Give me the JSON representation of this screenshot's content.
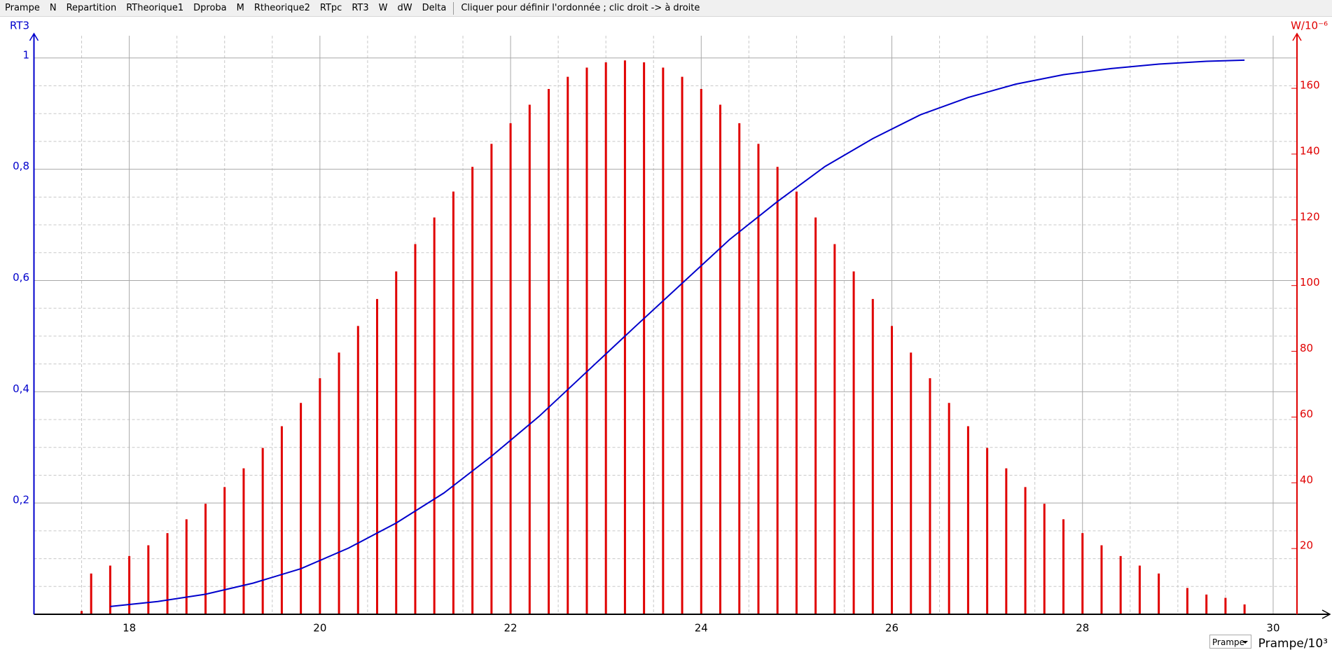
{
  "toolbar": {
    "buttons": [
      "Prampe",
      "N",
      "Repartition",
      "RTheorique1",
      "Dproba",
      "M",
      "Rtheorique2",
      "RTpc",
      "RT3",
      "W",
      "dW",
      "Delta"
    ],
    "hint": "Cliquer pour définir l'ordonnée ; clic droit -> à droite"
  },
  "dropdown": "Prampe",
  "chart_data": {
    "type": "bar",
    "y_label": "RT3",
    "y2_label": "W/10⁻⁶",
    "x_label": "Prampe/10³",
    "xlim": [
      17,
      30.25
    ],
    "xticks": [
      18,
      20,
      22,
      24,
      26,
      28,
      30
    ],
    "ylim": [
      0,
      1.04
    ],
    "yticks": [
      {
        "value": 0.2,
        "label": "0,2"
      },
      {
        "value": 0.4,
        "label": "0,4"
      },
      {
        "value": 0.6,
        "label": "0,6"
      },
      {
        "value": 0.8,
        "label": "0,8"
      },
      1
    ],
    "y2lim": [
      0,
      176
    ],
    "y2ticks": [
      20,
      40,
      60,
      80,
      100,
      120,
      140,
      160
    ],
    "grid": true,
    "series": [
      {
        "name": "W",
        "axis": "y2",
        "type": "bar",
        "color": "#e00000",
        "x": [
          17.5,
          17.6,
          17.8,
          18.0,
          18.2,
          18.4,
          18.6,
          18.8,
          19.0,
          19.2,
          19.4,
          19.6,
          19.8,
          20.0,
          20.2,
          20.4,
          20.6,
          20.8,
          21.0,
          21.2,
          21.4,
          21.6,
          21.8,
          22.0,
          22.2,
          22.4,
          22.6,
          22.8,
          23.0,
          23.2,
          23.4,
          23.6,
          23.8,
          24.0,
          24.2,
          24.4,
          24.6,
          24.8,
          25.0,
          25.2,
          25.4,
          25.6,
          25.8,
          26.0,
          26.2,
          26.4,
          26.6,
          26.8,
          27.0,
          27.2,
          27.4,
          27.6,
          27.8,
          28.0,
          28.2,
          28.4,
          28.6,
          28.8,
          29.1,
          29.3,
          29.5,
          29.7
        ],
        "values": [
          1,
          12.4,
          14.8,
          17.7,
          21.0,
          24.7,
          28.9,
          33.6,
          38.7,
          44.4,
          50.6,
          57.2,
          64.3,
          71.8,
          79.6,
          87.7,
          95.9,
          104.3,
          112.6,
          120.7,
          128.6,
          136.1,
          143.1,
          149.4,
          155.0,
          159.8,
          163.5,
          166.3,
          167.9,
          168.5,
          167.9,
          166.3,
          163.5,
          159.8,
          155.0,
          149.4,
          143.1,
          136.1,
          128.6,
          120.7,
          112.6,
          104.3,
          95.9,
          87.7,
          79.6,
          71.8,
          64.3,
          57.2,
          50.6,
          44.4,
          38.7,
          33.6,
          28.9,
          24.7,
          21.0,
          17.7,
          14.8,
          12.4,
          8,
          6,
          5,
          3
        ]
      },
      {
        "name": "RT3",
        "type": "line",
        "color": "#0000cc",
        "x": [
          17.8,
          18.3,
          18.8,
          19.3,
          19.8,
          20.3,
          20.8,
          21.3,
          21.8,
          22.3,
          22.8,
          23.3,
          23.8,
          24.3,
          24.8,
          25.3,
          25.8,
          26.3,
          26.8,
          27.3,
          27.8,
          28.3,
          28.8,
          29.3,
          29.7
        ],
        "values": [
          0.014,
          0.023,
          0.036,
          0.056,
          0.082,
          0.119,
          0.164,
          0.218,
          0.284,
          0.356,
          0.436,
          0.516,
          0.595,
          0.674,
          0.742,
          0.805,
          0.855,
          0.898,
          0.929,
          0.953,
          0.97,
          0.981,
          0.989,
          0.994,
          0.996
        ]
      }
    ]
  }
}
